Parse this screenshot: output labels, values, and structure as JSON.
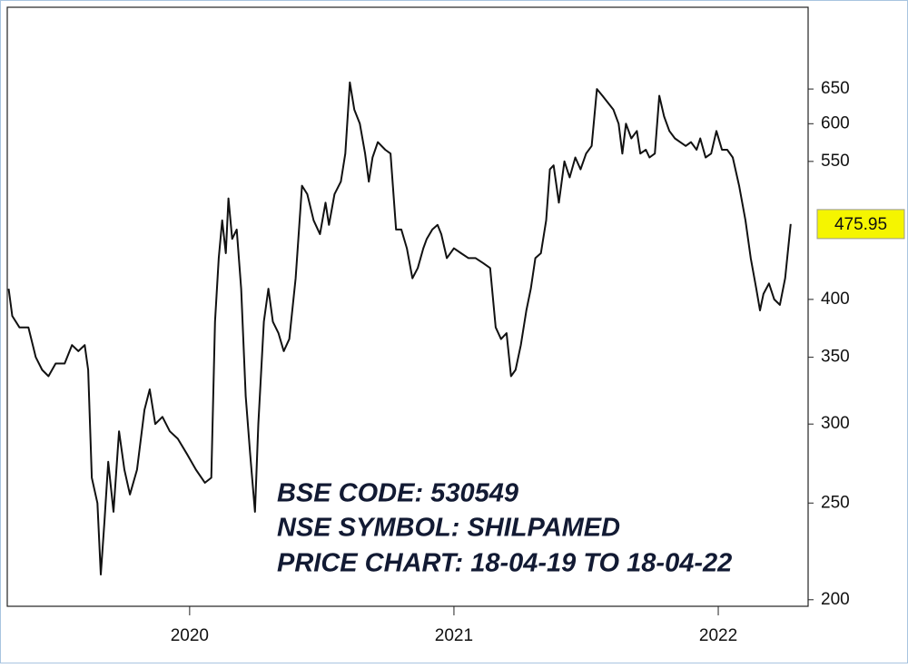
{
  "chart_data": {
    "type": "line",
    "color": "#111111",
    "log_y": true,
    "annotations": [
      "BSE CODE: 530549",
      "NSE SYMBOL: SHILPAMED",
      "PRICE CHART: 18-04-19 TO 18-04-22"
    ],
    "last_price": 475.95,
    "xlim": [
      2019.31,
      2022.34
    ],
    "xticks": [
      2020,
      2021,
      2022
    ],
    "ylim": [
      197,
      785
    ],
    "yticks": [
      200,
      250,
      300,
      350,
      400,
      550,
      600,
      650
    ],
    "x": [
      2019.315,
      2019.329,
      2019.356,
      2019.39,
      2019.418,
      2019.442,
      2019.466,
      2019.493,
      2019.527,
      2019.555,
      2019.579,
      2019.603,
      2019.616,
      2019.63,
      2019.651,
      2019.664,
      2019.678,
      2019.692,
      2019.712,
      2019.733,
      2019.753,
      2019.774,
      2019.801,
      2019.829,
      2019.849,
      2019.87,
      2019.897,
      2019.925,
      2019.955,
      2019.99,
      2020.024,
      2020.058,
      2020.082,
      2020.096,
      2020.11,
      2020.123,
      2020.137,
      2020.147,
      2020.161,
      2020.178,
      2020.195,
      2020.212,
      2020.229,
      2020.247,
      2020.26,
      2020.281,
      2020.298,
      2020.315,
      2020.336,
      2020.356,
      2020.377,
      2020.401,
      2020.425,
      2020.445,
      2020.469,
      2020.493,
      2020.514,
      2020.527,
      2020.548,
      2020.572,
      2020.589,
      2020.606,
      2020.623,
      2020.644,
      2020.664,
      2020.678,
      2020.692,
      2020.712,
      2020.74,
      2020.76,
      2020.781,
      2020.801,
      2020.822,
      2020.843,
      2020.863,
      2020.884,
      2020.897,
      2020.918,
      2020.938,
      2020.952,
      2020.973,
      2021.0,
      2021.027,
      2021.055,
      2021.082,
      2021.11,
      2021.137,
      2021.158,
      2021.178,
      2021.199,
      2021.216,
      2021.233,
      2021.253,
      2021.274,
      2021.291,
      2021.308,
      2021.329,
      2021.349,
      2021.363,
      2021.377,
      2021.397,
      2021.418,
      2021.438,
      2021.459,
      2021.479,
      2021.5,
      2021.521,
      2021.541,
      2021.562,
      2021.582,
      2021.603,
      2021.623,
      2021.637,
      2021.651,
      2021.671,
      2021.692,
      2021.705,
      2021.726,
      2021.74,
      2021.76,
      2021.777,
      2021.795,
      2021.815,
      2021.836,
      2021.856,
      2021.877,
      2021.897,
      2021.918,
      2021.932,
      2021.952,
      2021.973,
      2021.993,
      2022.014,
      2022.034,
      2022.055,
      2022.079,
      2022.103,
      2022.123,
      2022.144,
      2022.158,
      2022.171,
      2022.192,
      2022.212,
      2022.233,
      2022.253,
      2022.274
    ],
    "values": [
      410,
      385,
      375,
      375,
      350,
      340,
      335,
      345,
      345,
      360,
      355,
      360,
      340,
      265,
      250,
      212,
      240,
      275,
      245,
      295,
      270,
      255,
      270,
      310,
      325,
      300,
      305,
      295,
      290,
      280,
      270,
      262,
      265,
      380,
      440,
      480,
      445,
      505,
      460,
      470,
      410,
      320,
      280,
      245,
      300,
      380,
      410,
      380,
      370,
      355,
      365,
      420,
      520,
      510,
      480,
      465,
      500,
      475,
      510,
      525,
      560,
      660,
      620,
      600,
      560,
      525,
      555,
      575,
      565,
      560,
      470,
      470,
      450,
      420,
      430,
      450,
      460,
      470,
      475,
      465,
      440,
      450,
      445,
      440,
      440,
      435,
      430,
      375,
      365,
      370,
      335,
      340,
      360,
      390,
      410,
      440,
      445,
      480,
      540,
      545,
      500,
      550,
      530,
      555,
      540,
      560,
      570,
      650,
      640,
      630,
      620,
      600,
      560,
      600,
      580,
      590,
      560,
      565,
      555,
      560,
      640,
      610,
      590,
      580,
      575,
      570,
      575,
      565,
      580,
      555,
      560,
      590,
      565,
      565,
      555,
      520,
      480,
      440,
      410,
      390,
      405,
      415,
      400,
      395,
      420,
      476
    ]
  }
}
